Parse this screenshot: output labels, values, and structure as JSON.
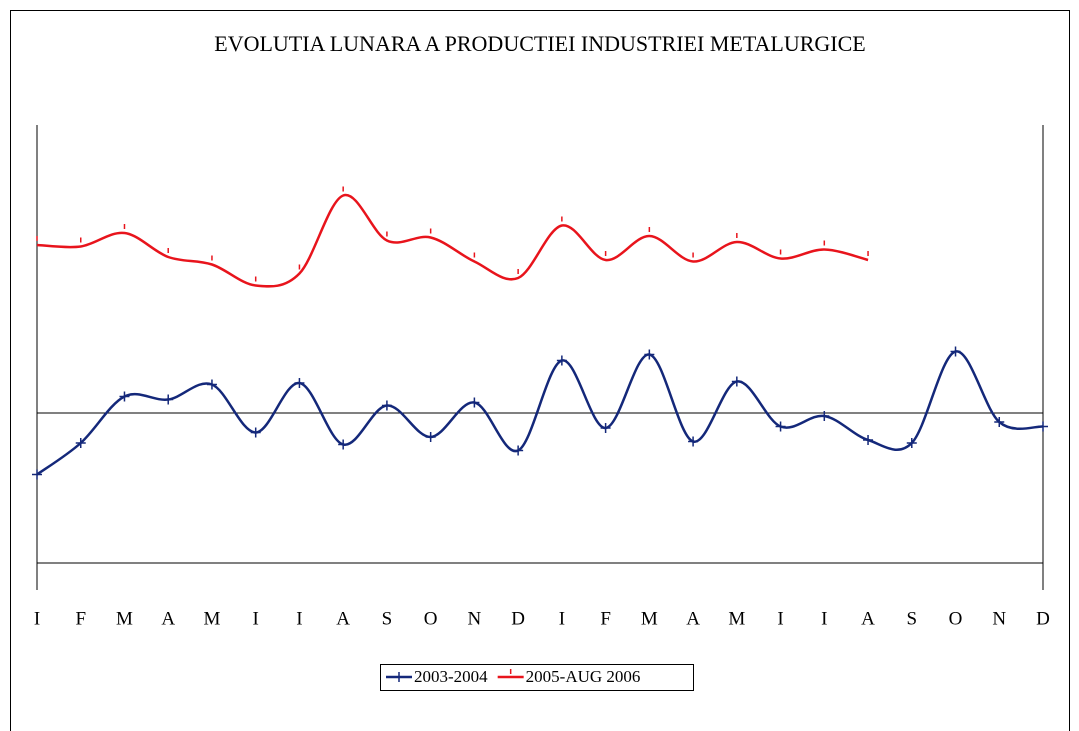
{
  "chart_data": {
    "type": "line",
    "title": "EVOLUTIA LUNARA A PRODUCTIEI INDUSTRIEI  METALURGICE",
    "categories": [
      "I",
      "F",
      "M",
      "A",
      "M",
      "I",
      "I",
      "A",
      "S",
      "O",
      "N",
      "D",
      "I",
      "F",
      "M",
      "A",
      "M",
      "I",
      "I",
      "A",
      "S",
      "O",
      "N",
      "D"
    ],
    "series": [
      {
        "name": "2003-2004",
        "color": "#14287a",
        "marker": "plus",
        "values": [
          -41,
          -20,
          11,
          9,
          19,
          -13,
          20,
          -21,
          5,
          -16,
          7,
          -25,
          35,
          -10,
          39,
          -19,
          21,
          -9,
          -2,
          -18,
          -20,
          41,
          -6,
          -9
        ]
      },
      {
        "name": "2005-AUG 2006",
        "color": "#e8141c",
        "marker": "tick",
        "values": [
          112,
          111,
          120,
          104,
          99,
          85,
          93,
          145,
          115,
          117,
          101,
          90,
          125,
          102,
          118,
          101,
          114,
          103,
          109,
          102,
          null,
          null,
          null,
          null
        ]
      }
    ],
    "ylim": [
      -100,
      192
    ],
    "smooth": true,
    "legend": "bottom"
  }
}
